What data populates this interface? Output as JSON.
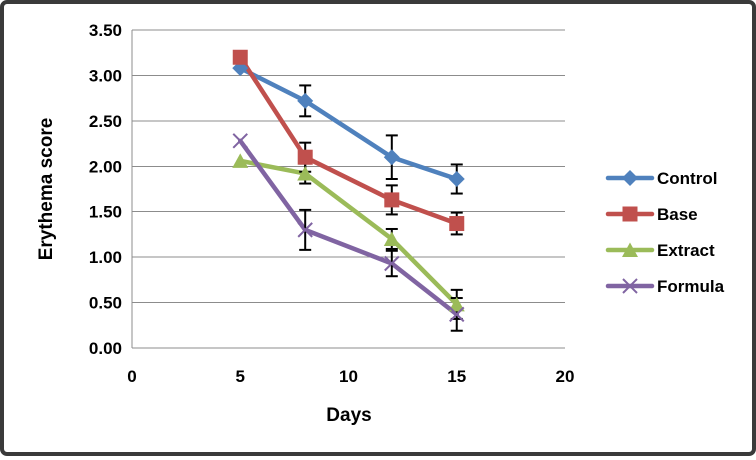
{
  "chart_data": {
    "type": "line",
    "title": "",
    "xlabel": "Days",
    "ylabel": "Erythema score",
    "x": [
      5,
      8,
      12,
      15
    ],
    "xlim": [
      0,
      20
    ],
    "ylim": [
      0,
      3.5
    ],
    "xtick_labels": [
      "0",
      "5",
      "10",
      "15",
      "20"
    ],
    "ytick_labels": [
      "0.00",
      "0.50",
      "1.00",
      "1.50",
      "2.00",
      "2.50",
      "3.00",
      "3.50"
    ],
    "grid": "horizontal",
    "legend_position": "right",
    "series": [
      {
        "name": "Control",
        "color": "#4F81BD",
        "marker": "diamond",
        "values": [
          3.08,
          2.72,
          2.1,
          1.86
        ],
        "errors": [
          0,
          0.17,
          0.24,
          0.16
        ]
      },
      {
        "name": "Base",
        "color": "#C0504D",
        "marker": "square",
        "values": [
          3.2,
          2.1,
          1.63,
          1.37
        ],
        "errors": [
          0,
          0.16,
          0.16,
          0.12
        ]
      },
      {
        "name": "Extract",
        "color": "#9BBB59",
        "marker": "triangle",
        "values": [
          2.06,
          1.92,
          1.2,
          0.48
        ],
        "errors": [
          0,
          0.11,
          0.11,
          0.16
        ]
      },
      {
        "name": "Formula",
        "color": "#8064A2",
        "marker": "x",
        "values": [
          2.28,
          1.3,
          0.93,
          0.37
        ],
        "errors": [
          0,
          0.22,
          0.14,
          0.18
        ]
      }
    ],
    "styles": {
      "grid_color": "#8C8C8C",
      "axis_color": "#8C8C8C",
      "error_bar_color": "#000000",
      "text_color": "#000000",
      "background": "#FFFFFF",
      "frame_border": "#3A3A3A"
    }
  }
}
